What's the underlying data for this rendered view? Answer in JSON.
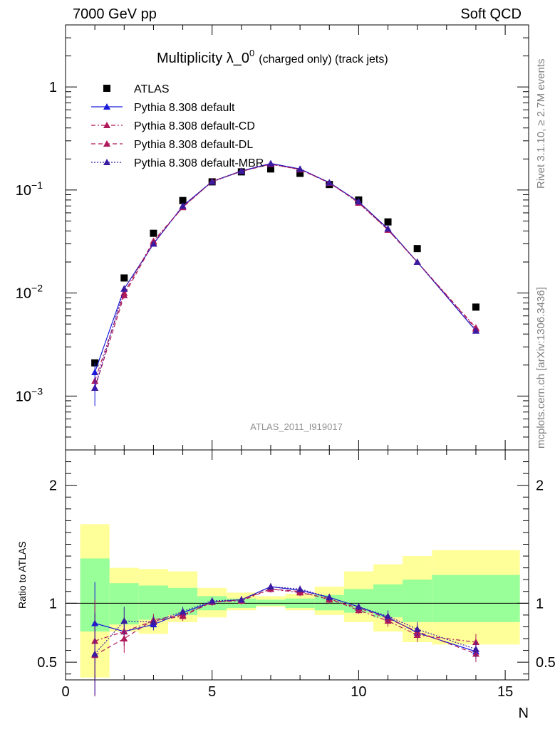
{
  "header": {
    "left": "7000 GeV pp",
    "right": "Soft QCD"
  },
  "side_labels": {
    "rivet": "Rivet 3.1.10, ≥ 2.7M events",
    "mcplots": "mcplots.cern.ch [arXiv:1306.3436]"
  },
  "chart_data": {
    "type": "scatter",
    "title": "Multiplicity λ_0",
    "title_sup": "0",
    "title_suffix": "(charged only) (track jets)",
    "analysis_id": "ATLAS_2011_I919017",
    "xlabel": "N",
    "ratio_ylabel": "Ratio to ATLAS",
    "xlim": [
      0,
      15.8
    ],
    "ylim_main": [
      0.0003,
      4.0
    ],
    "yscale_main": "log",
    "ylim_ratio": [
      0.35,
      2.3
    ],
    "x_ticks": [
      "0",
      "5",
      "10",
      "15"
    ],
    "y_ticks_main": [
      "1",
      "10",
      "10",
      "10"
    ],
    "y_ticks_main_exp": [
      "",
      "−1",
      "−2",
      "−3"
    ],
    "y_ticks_ratio": [
      "0.5",
      "1",
      "2"
    ],
    "legend_position": "top-left",
    "x": [
      1,
      2,
      3,
      4,
      5,
      6,
      7,
      8,
      9,
      10,
      11,
      12,
      14
    ],
    "series": [
      {
        "name": "ATLAS",
        "color": "#000000",
        "marker": "square",
        "values": [
          0.0021,
          0.014,
          0.038,
          0.079,
          0.12,
          0.15,
          0.16,
          0.145,
          0.113,
          0.08,
          0.049,
          0.027,
          0.0073
        ]
      },
      {
        "name": "Pythia 8.308 default",
        "color": "#1a1adc",
        "marker": "triangle",
        "values": [
          0.0017,
          0.011,
          0.03,
          0.07,
          0.121,
          0.153,
          0.181,
          0.16,
          0.118,
          0.077,
          0.042,
          0.02,
          0.0043
        ]
      },
      {
        "name": "Pythia 8.308 default-CD",
        "color": "#b0195a",
        "marker": "triangle",
        "values": [
          0.0014,
          0.01,
          0.032,
          0.068,
          0.121,
          0.152,
          0.178,
          0.158,
          0.118,
          0.075,
          0.041,
          0.02,
          0.0046
        ]
      },
      {
        "name": "Pythia 8.308 default-DL",
        "color": "#b0195a",
        "marker": "triangle",
        "values": [
          0.0012,
          0.0095,
          0.031,
          0.068,
          0.121,
          0.152,
          0.178,
          0.158,
          0.117,
          0.076,
          0.041,
          0.02,
          0.0045
        ]
      },
      {
        "name": "Pythia 8.308 default-MBR",
        "color": "#3a1aa0",
        "marker": "triangle",
        "values": [
          0.0012,
          0.011,
          0.03,
          0.07,
          0.12,
          0.152,
          0.18,
          0.16,
          0.118,
          0.077,
          0.042,
          0.02,
          0.0043
        ]
      }
    ],
    "ratio_series": [
      {
        "name": "Pythia 8.308 default",
        "values": [
          0.83,
          0.76,
          0.82,
          0.92,
          1.01,
          1.03,
          1.14,
          1.11,
          1.05,
          0.97,
          0.88,
          0.75,
          0.59
        ]
      },
      {
        "name": "Pythia 8.308 default-CD",
        "values": [
          0.68,
          0.76,
          0.85,
          0.89,
          1.01,
          1.02,
          1.12,
          1.09,
          1.04,
          0.94,
          0.85,
          0.73,
          0.67
        ]
      },
      {
        "name": "Pythia 8.308 default-DL",
        "values": [
          0.56,
          0.7,
          0.86,
          0.9,
          1.01,
          1.03,
          1.12,
          1.1,
          1.03,
          0.96,
          0.87,
          0.76,
          0.57
        ]
      },
      {
        "name": "Pythia 8.308 default-MBR",
        "values": [
          0.57,
          0.85,
          0.84,
          0.93,
          1.02,
          1.03,
          1.14,
          1.12,
          1.05,
          0.97,
          0.89,
          0.78,
          0.61
        ]
      }
    ],
    "ratio_bands": {
      "edges": [
        0.5,
        1.5,
        2.5,
        3.5,
        4.5,
        5.5,
        6.5,
        7.5,
        8.5,
        9.5,
        10.5,
        11.5,
        12.5,
        15.5
      ],
      "green_low": [
        0.76,
        0.82,
        0.86,
        0.9,
        0.94,
        0.96,
        0.98,
        0.96,
        0.94,
        0.92,
        0.88,
        0.84,
        0.84
      ],
      "green_high": [
        1.38,
        1.17,
        1.15,
        1.13,
        1.06,
        1.04,
        1.03,
        1.04,
        1.07,
        1.12,
        1.16,
        1.2,
        1.24
      ],
      "yellow_low": [
        0.37,
        0.76,
        0.74,
        0.84,
        0.88,
        0.94,
        0.97,
        0.94,
        0.9,
        0.84,
        0.76,
        0.67,
        0.65
      ],
      "yellow_high": [
        1.67,
        1.3,
        1.29,
        1.27,
        1.13,
        1.09,
        1.06,
        1.08,
        1.14,
        1.27,
        1.33,
        1.4,
        1.45
      ]
    },
    "ratio_errors": [
      0.35,
      0.12,
      0.05,
      0.04,
      0.03,
      0.03,
      0.03,
      0.03,
      0.03,
      0.03,
      0.05,
      0.06,
      0.07
    ],
    "main_errors_low_first": 0.0008
  }
}
